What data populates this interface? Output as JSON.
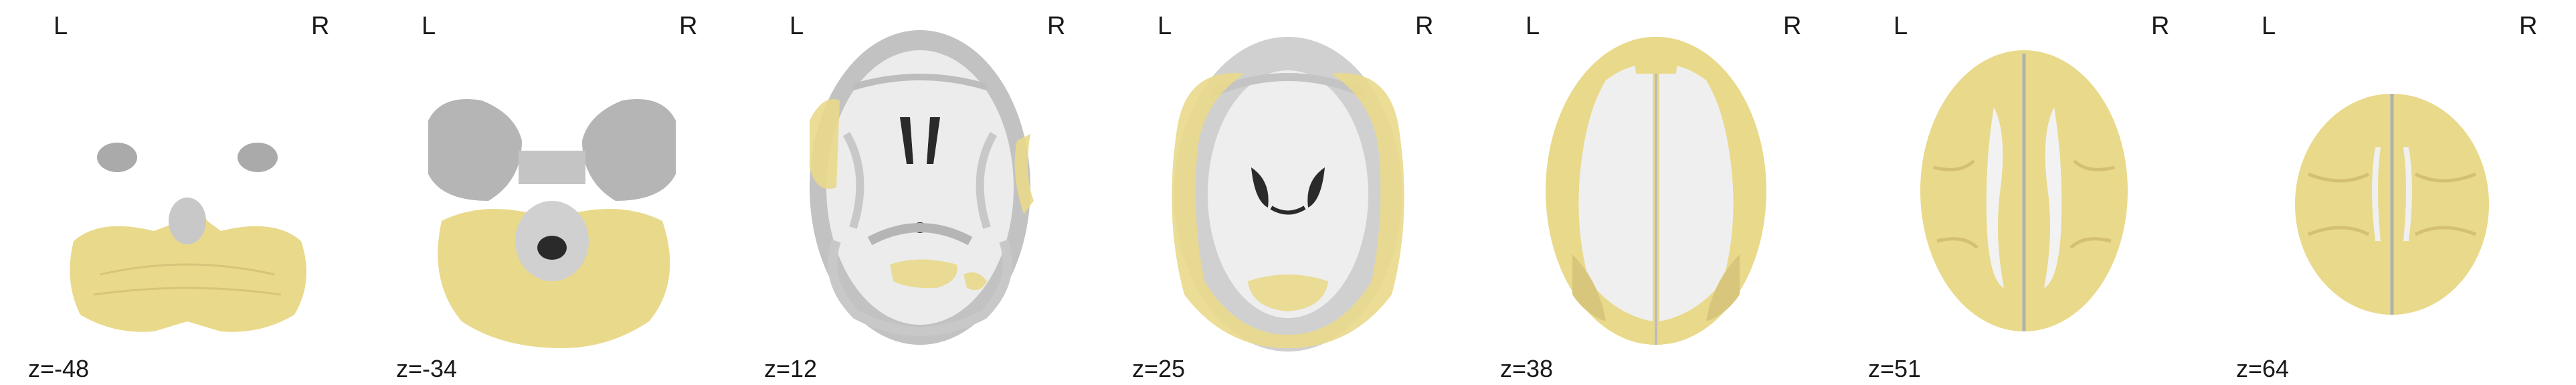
{
  "orientation": {
    "left": "L",
    "right": "R"
  },
  "slices": [
    {
      "z_label": "z=-48"
    },
    {
      "z_label": "z=-34"
    },
    {
      "z_label": "z=12"
    },
    {
      "z_label": "z=25"
    },
    {
      "z_label": "z=38"
    },
    {
      "z_label": "z=51"
    },
    {
      "z_label": "z=64"
    }
  ],
  "colors": {
    "background": "#ffffff",
    "brain_gray": "#b8b8b8",
    "white_matter": "#efefef",
    "ventricle": "#2a2a2a",
    "overlay_yellow": "#e9d98a"
  }
}
